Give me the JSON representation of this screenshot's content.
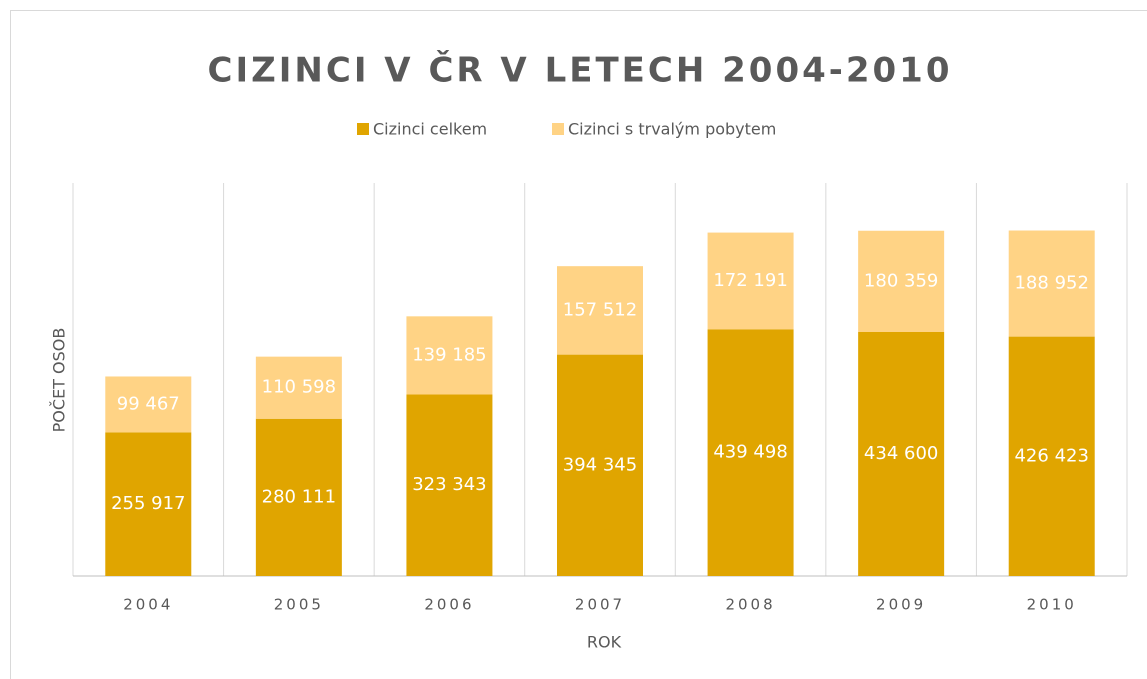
{
  "chart_data": {
    "type": "stacked_bar",
    "title": "CIZINCI V ČR V LETECH 2004-2010",
    "x_label": "ROK",
    "y_label": "POČET OSOB",
    "categories": [
      "2004",
      "2005",
      "2006",
      "2007",
      "2008",
      "2009",
      "2010"
    ],
    "series": [
      {
        "name": "Cizinci celkem",
        "color": "#E0A500",
        "values": [
          255917,
          280111,
          323343,
          394345,
          439498,
          434600,
          426423
        ],
        "value_labels": [
          "255 917",
          "280 111",
          "323 343",
          "394 345",
          "439 498",
          "434 600",
          "426 423"
        ]
      },
      {
        "name": "Cizinci s trvalým pobytem",
        "color": "#FFD385",
        "values": [
          99467,
          110598,
          139185,
          157512,
          172191,
          180359,
          188952
        ],
        "value_labels": [
          "99 467",
          "110 598",
          "139 185",
          "157 512",
          "172 191",
          "180 359",
          "188 952"
        ]
      }
    ],
    "ylim": [
      0,
      700000
    ],
    "legend": "top"
  }
}
